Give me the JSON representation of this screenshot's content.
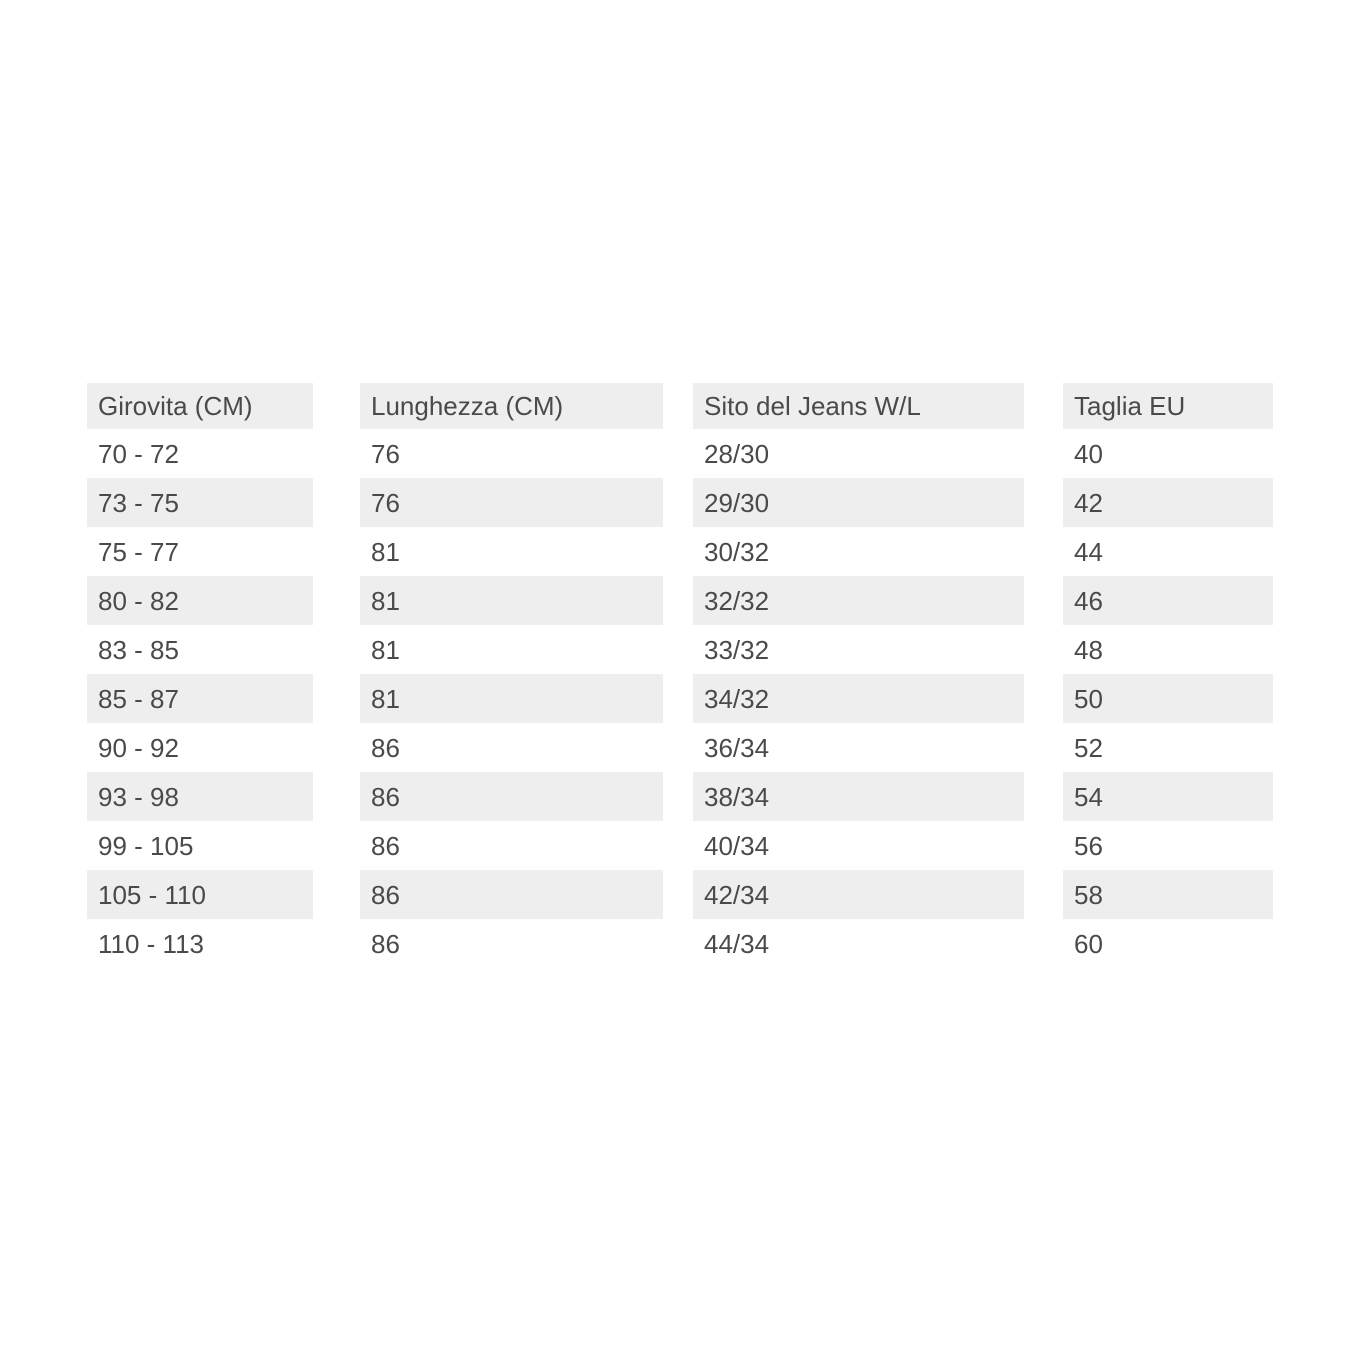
{
  "page": {
    "background": "#ffffff"
  },
  "chart_data": {
    "type": "table",
    "title": "",
    "columns": [
      "Girovita (CM)",
      "Lunghezza (CM)",
      "Sito del Jeans W/L",
      "Taglia EU"
    ],
    "rows": [
      [
        "70 - 72",
        "76",
        "28/30",
        "40"
      ],
      [
        "73 - 75",
        "76",
        "29/30",
        "42"
      ],
      [
        "75 - 77",
        "81",
        "30/32",
        "44"
      ],
      [
        "80 - 82",
        "81",
        "32/32",
        "46"
      ],
      [
        "83 - 85",
        "81",
        "33/32",
        "48"
      ],
      [
        "85 - 87",
        "81",
        "34/32",
        "50"
      ],
      [
        "90 - 92",
        "86",
        "36/34",
        "52"
      ],
      [
        "93 - 98",
        "86",
        "38/34",
        "54"
      ],
      [
        "99 - 105",
        "86",
        "40/34",
        "56"
      ],
      [
        "105 - 110",
        "86",
        "42/34",
        "58"
      ],
      [
        "110 - 113",
        "86",
        "44/34",
        "60"
      ]
    ],
    "layout": {
      "stripe_color": "#eeeeee",
      "text_color": "#4a4a4a",
      "background": "#ffffff",
      "header_striped": true,
      "first_data_row_white": true
    }
  }
}
